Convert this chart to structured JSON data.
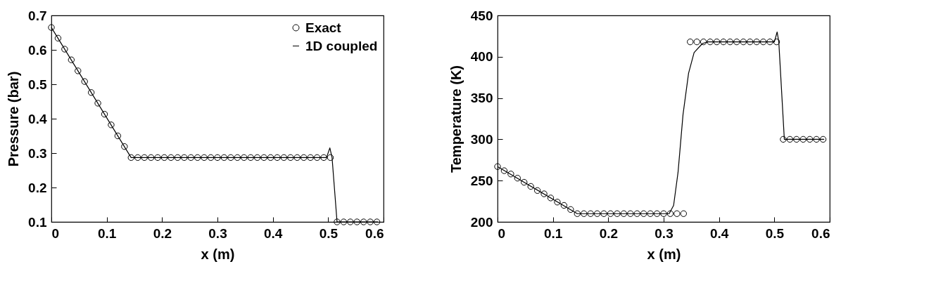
{
  "chart_data": [
    {
      "type": "line",
      "xlabel": "x (m)",
      "ylabel": "Pressure (bar)",
      "xlim": [
        0,
        0.6
      ],
      "xticks": [
        0,
        0.1,
        0.2,
        0.3,
        0.4,
        0.5,
        0.6
      ],
      "ylim": [
        0.1,
        0.7
      ],
      "yticks": [
        0.1,
        0.2,
        0.3,
        0.4,
        0.5,
        0.6,
        0.7
      ],
      "legend": "top right",
      "series": [
        {
          "name": "Exact",
          "type": "scatter",
          "marker": "circle",
          "color": "#000000",
          "x": [
            0,
            0.012,
            0.024,
            0.036,
            0.048,
            0.06,
            0.072,
            0.084,
            0.096,
            0.108,
            0.12,
            0.132,
            0.144,
            0.156,
            0.168,
            0.18,
            0.192,
            0.204,
            0.216,
            0.228,
            0.24,
            0.252,
            0.264,
            0.276,
            0.288,
            0.3,
            0.312,
            0.324,
            0.336,
            0.348,
            0.36,
            0.372,
            0.384,
            0.396,
            0.408,
            0.42,
            0.432,
            0.444,
            0.456,
            0.468,
            0.48,
            0.492,
            0.504,
            0.516,
            0.528,
            0.54,
            0.552,
            0.564,
            0.576,
            0.588
          ],
          "values": [
            0.665,
            0.634,
            0.602,
            0.571,
            0.539,
            0.508,
            0.476,
            0.445,
            0.413,
            0.382,
            0.35,
            0.319,
            0.287,
            0.287,
            0.287,
            0.287,
            0.287,
            0.287,
            0.287,
            0.287,
            0.287,
            0.287,
            0.287,
            0.287,
            0.287,
            0.287,
            0.287,
            0.287,
            0.287,
            0.287,
            0.287,
            0.287,
            0.287,
            0.287,
            0.287,
            0.287,
            0.287,
            0.287,
            0.287,
            0.287,
            0.287,
            0.287,
            0.287,
            0.1,
            0.1,
            0.1,
            0.1,
            0.1,
            0.1,
            0.1
          ]
        },
        {
          "name": "1D coupled",
          "type": "line",
          "color": "#000000",
          "x": [
            0,
            0.144,
            0.497,
            0.503,
            0.507,
            0.516,
            0.59
          ],
          "values": [
            0.665,
            0.287,
            0.287,
            0.315,
            0.287,
            0.1,
            0.1
          ]
        }
      ]
    },
    {
      "type": "line",
      "xlabel": "x (m)",
      "ylabel": "Temperature (K)",
      "xlim": [
        0,
        0.6
      ],
      "xticks": [
        0,
        0.1,
        0.2,
        0.3,
        0.4,
        0.5,
        0.6
      ],
      "ylim": [
        200,
        450
      ],
      "yticks": [
        200,
        250,
        300,
        350,
        400,
        450
      ],
      "series": [
        {
          "type": "scatter",
          "marker": "circle",
          "color": "#000000",
          "x": [
            0,
            0.012,
            0.024,
            0.036,
            0.048,
            0.06,
            0.072,
            0.084,
            0.096,
            0.108,
            0.12,
            0.132,
            0.144,
            0.156,
            0.168,
            0.18,
            0.192,
            0.204,
            0.216,
            0.228,
            0.24,
            0.252,
            0.264,
            0.276,
            0.288,
            0.3,
            0.312,
            0.324,
            0.336,
            0.348,
            0.36,
            0.372,
            0.384,
            0.396,
            0.408,
            0.42,
            0.432,
            0.444,
            0.456,
            0.468,
            0.48,
            0.492,
            0.504,
            0.516,
            0.528,
            0.54,
            0.552,
            0.564,
            0.576,
            0.588
          ],
          "values": [
            267,
            262,
            258,
            253,
            248,
            243,
            238,
            234,
            229,
            224,
            220,
            215,
            210,
            210,
            210,
            210,
            210,
            210,
            210,
            210,
            210,
            210,
            210,
            210,
            210,
            210,
            210,
            210,
            210,
            418,
            418,
            418,
            418,
            418,
            418,
            418,
            418,
            418,
            418,
            418,
            418,
            418,
            418,
            300,
            300,
            300,
            300,
            300,
            300,
            300
          ]
        },
        {
          "type": "line",
          "color": "#000000",
          "x": [
            0,
            0.144,
            0.31,
            0.318,
            0.326,
            0.335,
            0.345,
            0.355,
            0.37,
            0.38,
            0.5,
            0.505,
            0.508,
            0.518,
            0.59
          ],
          "values": [
            267,
            210,
            210,
            220,
            260,
            330,
            380,
            405,
            416,
            418,
            418,
            430,
            418,
            300,
            300
          ]
        }
      ]
    }
  ]
}
